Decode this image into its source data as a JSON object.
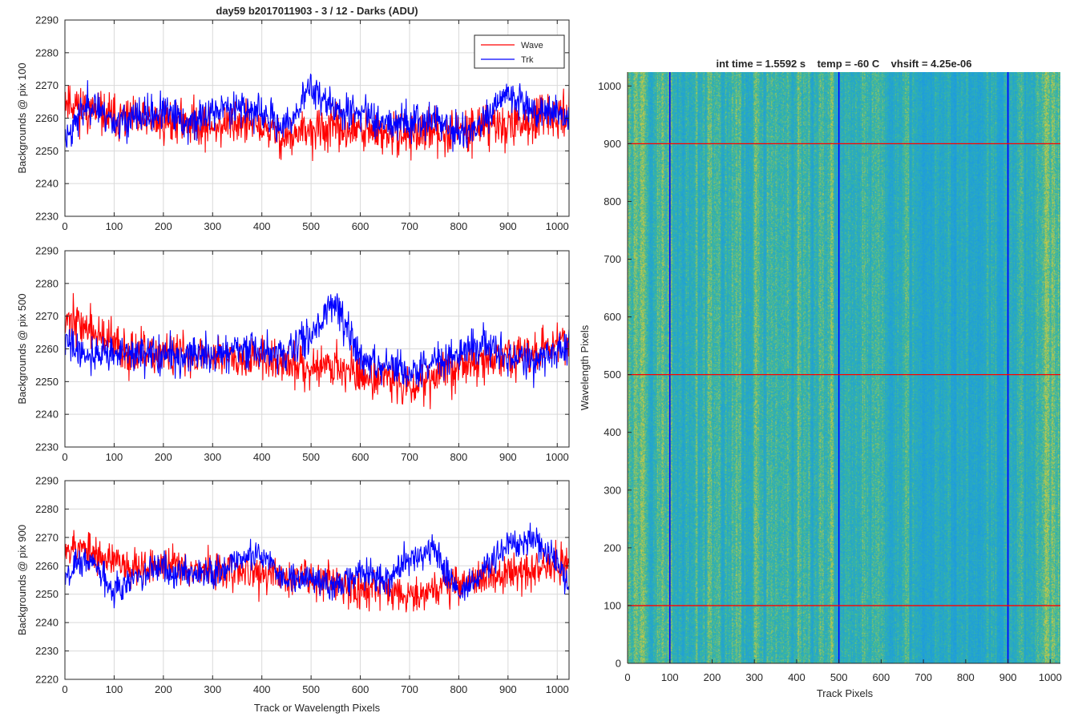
{
  "figure_title": "day59 b2017011903 - 3 / 12 - Darks (ADU)",
  "colors": {
    "wave": "#ff0000",
    "trk": "#0000ff",
    "grid": "#d9d9d9",
    "axis": "#262626",
    "cmap_low": "#1b9be3",
    "cmap_mid": "#2db6a6",
    "cmap_high": "#b7c24a"
  },
  "chart_data": [
    {
      "type": "line",
      "title": "day59 b2017011903 - 3 / 12 - Darks (ADU)",
      "xlabel": "",
      "ylabel": "Backgrounds @ pix 100",
      "xlim": [
        0,
        1024
      ],
      "ylim": [
        2230,
        2290
      ],
      "xticks": [
        0,
        100,
        200,
        300,
        400,
        500,
        600,
        700,
        800,
        900,
        1000
      ],
      "yticks": [
        2230,
        2240,
        2250,
        2260,
        2270,
        2280,
        2290
      ],
      "grid": true,
      "legend": {
        "placement": "top-right",
        "entries": [
          "Wave",
          "Trk"
        ]
      },
      "series": [
        {
          "name": "Wave",
          "color": "#ff0000",
          "anchors_x": [
            0,
            50,
            100,
            150,
            200,
            250,
            300,
            350,
            400,
            450,
            500,
            550,
            600,
            650,
            700,
            750,
            800,
            850,
            900,
            950,
            1000,
            1024
          ],
          "anchors_y": [
            2266,
            2262,
            2260,
            2259,
            2259,
            2259,
            2257,
            2259,
            2257,
            2254,
            2256,
            2257,
            2256,
            2255,
            2255,
            2256,
            2256,
            2258,
            2258,
            2259,
            2260,
            2262
          ],
          "noise_amplitude": 6,
          "seed": 11
        },
        {
          "name": "Trk",
          "color": "#0000ff",
          "anchors_x": [
            0,
            50,
            100,
            150,
            200,
            250,
            300,
            350,
            400,
            450,
            500,
            550,
            600,
            650,
            700,
            750,
            800,
            850,
            900,
            950,
            1000,
            1024
          ],
          "anchors_y": [
            2254,
            2265,
            2259,
            2260,
            2262,
            2258,
            2262,
            2264,
            2261,
            2257,
            2270,
            2262,
            2262,
            2259,
            2259,
            2260,
            2255,
            2258,
            2268,
            2263,
            2262,
            2259
          ],
          "noise_amplitude": 5,
          "seed": 23
        }
      ]
    },
    {
      "type": "line",
      "title": "",
      "xlabel": "",
      "ylabel": "Backgrounds @ pix 500",
      "xlim": [
        0,
        1024
      ],
      "ylim": [
        2230,
        2290
      ],
      "xticks": [
        0,
        100,
        200,
        300,
        400,
        500,
        600,
        700,
        800,
        900,
        1000
      ],
      "yticks": [
        2230,
        2240,
        2250,
        2260,
        2270,
        2280,
        2290
      ],
      "grid": true,
      "series": [
        {
          "name": "Wave",
          "color": "#ff0000",
          "anchors_x": [
            0,
            50,
            100,
            150,
            200,
            250,
            300,
            350,
            400,
            450,
            500,
            550,
            600,
            650,
            700,
            750,
            800,
            850,
            900,
            950,
            1000,
            1024
          ],
          "anchors_y": [
            2270,
            2266,
            2261,
            2258,
            2258,
            2258,
            2258,
            2258,
            2257,
            2255,
            2255,
            2255,
            2252,
            2251,
            2249,
            2252,
            2255,
            2256,
            2258,
            2258,
            2263,
            2263
          ],
          "noise_amplitude": 6,
          "seed": 37
        },
        {
          "name": "Trk",
          "color": "#0000ff",
          "anchors_x": [
            0,
            50,
            100,
            150,
            200,
            250,
            300,
            350,
            400,
            450,
            500,
            550,
            600,
            650,
            700,
            750,
            800,
            850,
            900,
            950,
            1000,
            1024
          ],
          "anchors_y": [
            2262,
            2258,
            2259,
            2258,
            2258,
            2258,
            2258,
            2260,
            2259,
            2258,
            2265,
            2275,
            2256,
            2255,
            2252,
            2256,
            2259,
            2262,
            2257,
            2256,
            2259,
            2262
          ],
          "noise_amplitude": 5,
          "seed": 41
        }
      ]
    },
    {
      "type": "line",
      "title": "",
      "xlabel": "Track or Wavelength Pixels",
      "ylabel": "Backgrounds @ pix 900",
      "xlim": [
        0,
        1024
      ],
      "ylim": [
        2220,
        2290
      ],
      "xticks": [
        0,
        100,
        200,
        300,
        400,
        500,
        600,
        700,
        800,
        900,
        1000
      ],
      "yticks": [
        2220,
        2230,
        2240,
        2250,
        2260,
        2270,
        2280,
        2290
      ],
      "grid": true,
      "series": [
        {
          "name": "Wave",
          "color": "#ff0000",
          "anchors_x": [
            0,
            50,
            100,
            150,
            200,
            250,
            300,
            350,
            400,
            450,
            500,
            550,
            600,
            650,
            700,
            750,
            800,
            850,
            900,
            950,
            1000,
            1024
          ],
          "anchors_y": [
            2268,
            2265,
            2261,
            2260,
            2260,
            2260,
            2258,
            2258,
            2257,
            2256,
            2256,
            2255,
            2252,
            2252,
            2250,
            2252,
            2254,
            2256,
            2257,
            2258,
            2261,
            2262
          ],
          "noise_amplitude": 6,
          "seed": 53
        },
        {
          "name": "Trk",
          "color": "#0000ff",
          "anchors_x": [
            0,
            50,
            100,
            150,
            200,
            250,
            300,
            350,
            400,
            450,
            500,
            550,
            600,
            650,
            700,
            750,
            800,
            850,
            900,
            950,
            1000,
            1024
          ],
          "anchors_y": [
            2258,
            2262,
            2252,
            2256,
            2259,
            2258,
            2258,
            2262,
            2264,
            2255,
            2256,
            2252,
            2258,
            2255,
            2262,
            2266,
            2250,
            2258,
            2267,
            2270,
            2262,
            2252
          ],
          "noise_amplitude": 5,
          "seed": 67
        }
      ]
    },
    {
      "type": "heatmap",
      "title": "int time = 1.5592 s    temp = -60 C    vhsift = 4.25e-06",
      "xlabel": "Track Pixels",
      "ylabel": "Wavelength Pixels",
      "xlim": [
        0,
        1024
      ],
      "ylim": [
        0,
        1024
      ],
      "xticks": [
        0,
        100,
        200,
        300,
        400,
        500,
        600,
        700,
        800,
        900,
        1000
      ],
      "yticks": [
        0,
        100,
        200,
        300,
        400,
        500,
        600,
        700,
        800,
        900,
        1000
      ],
      "grid": false,
      "vertical_lines": {
        "x": [
          100,
          500,
          900
        ],
        "color": "#0000ff"
      },
      "horizontal_lines": {
        "y": [
          100,
          500,
          900
        ],
        "color": "#ff0000"
      }
    }
  ]
}
